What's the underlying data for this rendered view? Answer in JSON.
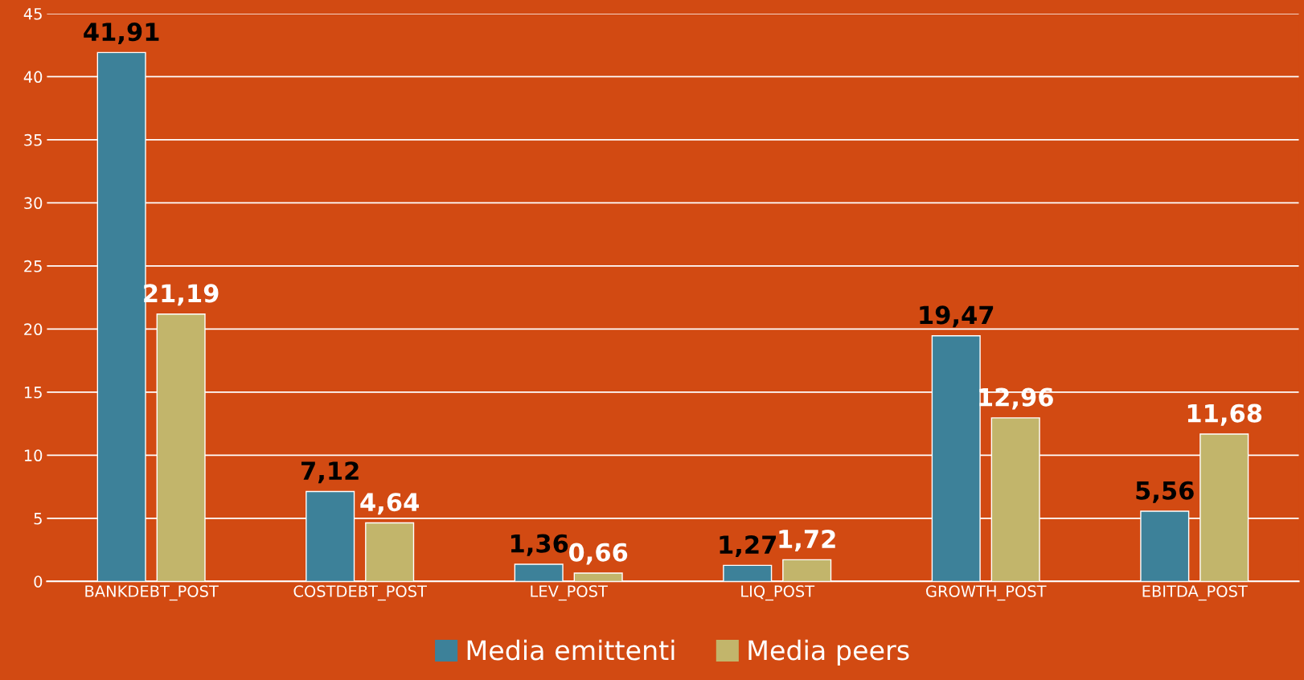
{
  "chart_data": {
    "type": "bar",
    "categories": [
      "BANKDEBT_POST",
      "COSTDEBT_POST",
      "LEV_POST",
      "LIQ_POST",
      "GROWTH_POST",
      "EBITDA_POST"
    ],
    "series": [
      {
        "name": "Media emittenti",
        "color": "#3d8199",
        "values": [
          41.91,
          7.12,
          1.36,
          1.27,
          19.47,
          5.56
        ],
        "value_labels": [
          "41,91",
          "7,12",
          "1,36",
          "1,27",
          "19,47",
          "5,56"
        ]
      },
      {
        "name": "Media peers",
        "color": "#c2b56b",
        "values": [
          21.19,
          4.64,
          0.66,
          1.72,
          12.96,
          11.68
        ],
        "value_labels": [
          "21,19",
          "4,64",
          "0,66",
          "1,72",
          "12,96",
          "11,68"
        ]
      }
    ],
    "ylim": [
      0,
      45
    ],
    "yticks": [
      0,
      5,
      10,
      15,
      20,
      25,
      30,
      35,
      40,
      45
    ],
    "grid": "y",
    "legend": "bottom"
  }
}
